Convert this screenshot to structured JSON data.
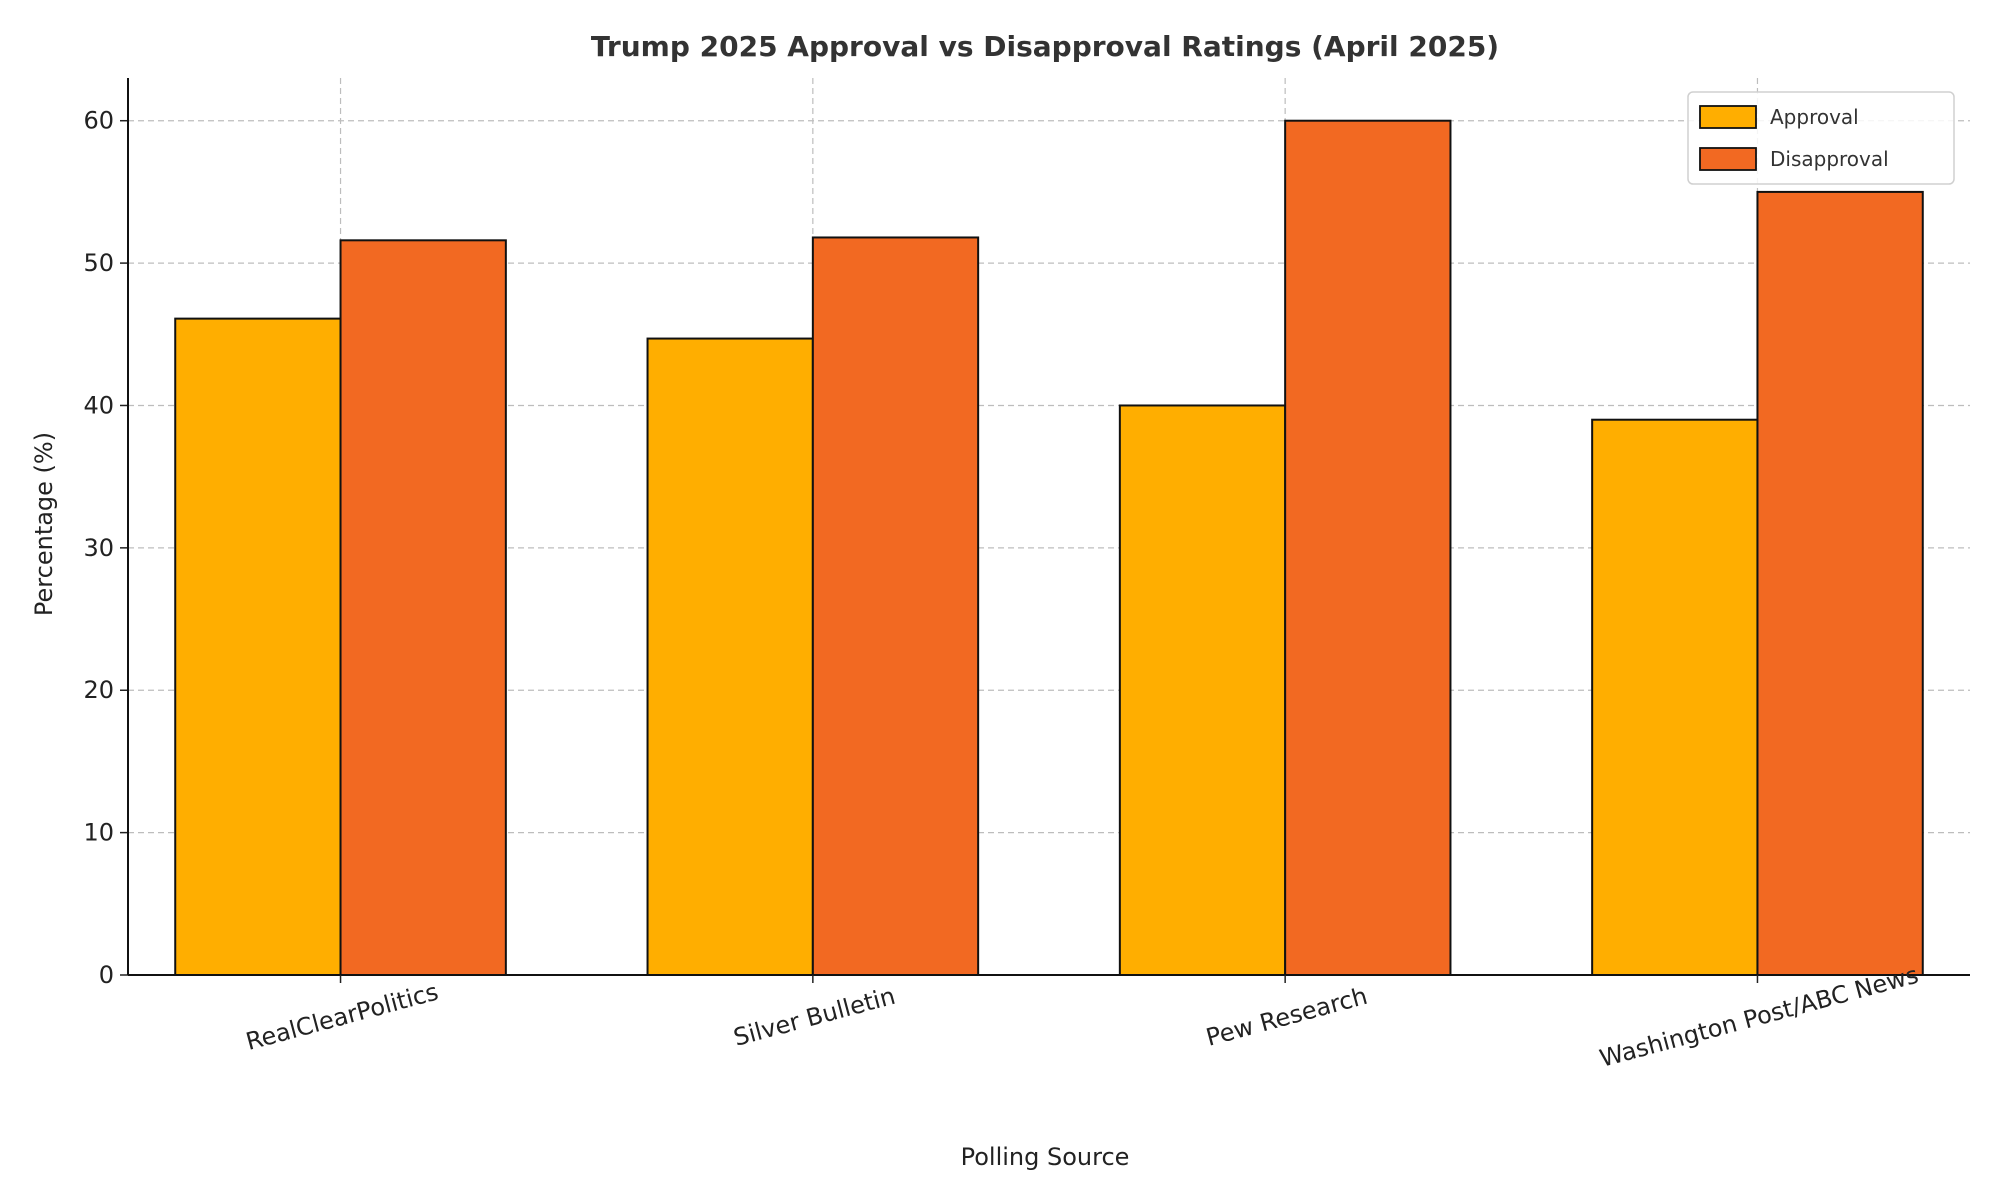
{
  "chart_data": {
    "type": "bar",
    "title": "Trump 2025 Approval vs Disapproval Ratings (April 2025)",
    "xlabel": "Polling Source",
    "ylabel": "Percentage (%)",
    "categories": [
      "RealClearPolitics",
      "Silver Bulletin",
      "Pew Research",
      "Washington Post/ABC News"
    ],
    "series": [
      {
        "name": "Approval",
        "color": "#FFAE00",
        "values": [
          46.1,
          44.7,
          40,
          39
        ]
      },
      {
        "name": "Disapproval",
        "color": "#F26922",
        "values": [
          51.6,
          51.8,
          60,
          55
        ]
      }
    ],
    "ylim": [
      0,
      63
    ],
    "yticks": [
      0,
      10,
      20,
      30,
      40,
      50,
      60
    ],
    "grid": true,
    "legend_position": "top-right",
    "xtick_rotation": "15°"
  }
}
